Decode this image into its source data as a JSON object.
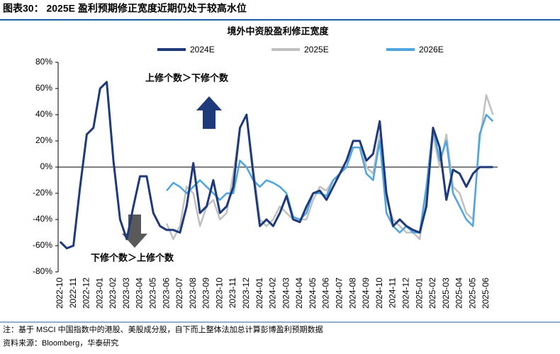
{
  "header": "图表30： 2025E 盈利预期修正宽度近期仍处于较高水位",
  "notes": [
    "注：基于 MSCI 中国指数中的港股、美股成分股，自下而上整体法加总计算彭博盈利预期数据",
    "资料来源：Bloomberg，华泰研究"
  ],
  "chart_data": {
    "type": "line",
    "title": "境外中资股盈利修正宽度",
    "annotations": [
      "上修个数＞下修个数",
      "下修个数＞上修个数"
    ],
    "categories": [
      "2022-10",
      null,
      "2022-11",
      null,
      "2022-12",
      null,
      "2023-01",
      null,
      "2023-02",
      null,
      "2023-03",
      null,
      "2023-04",
      null,
      "2023-05",
      null,
      "2023-06",
      null,
      "2023-07",
      null,
      "2023-08",
      null,
      "2023-09",
      null,
      "2023-10",
      null,
      "2023-11",
      null,
      "2023-12",
      null,
      "2024-01",
      null,
      "2024-02",
      null,
      "2024-03",
      null,
      "2024-04",
      null,
      "2024-05",
      null,
      "2024-06",
      null,
      "2024-07",
      null,
      "2024-08",
      null,
      "2024-09",
      null,
      "2024-10",
      null,
      "2024-11",
      null,
      "2024-12",
      null,
      "2025-01",
      null,
      "2025-02",
      null,
      "2025-03",
      null,
      "2025-04",
      null,
      "2025-05",
      null,
      "2025-06",
      null
    ],
    "series": [
      {
        "name": "2024E",
        "color": "#1f3a7a",
        "values": [
          -57,
          -62,
          -60,
          -15,
          25,
          30,
          60,
          65,
          5,
          -40,
          -55,
          -30,
          -7,
          -7,
          -35,
          -45,
          -48,
          -48,
          -50,
          -30,
          3,
          -35,
          -30,
          -10,
          -35,
          -30,
          -15,
          30,
          40,
          -5,
          -45,
          -40,
          -45,
          -35,
          -22,
          -40,
          -42,
          -30,
          -20,
          -18,
          -25,
          -15,
          -5,
          5,
          20,
          20,
          5,
          10,
          35,
          -20,
          -45,
          -40,
          -45,
          -48,
          -50,
          -30,
          30,
          15,
          -25,
          -2,
          -5,
          -15,
          -5,
          0,
          0,
          0
        ]
      },
      {
        "name": "2025E",
        "color": "#c0c0c0",
        "values": [
          null,
          null,
          null,
          null,
          null,
          null,
          null,
          null,
          null,
          null,
          null,
          null,
          null,
          null,
          null,
          null,
          -43,
          -55,
          -45,
          -15,
          -20,
          -45,
          -30,
          -25,
          -40,
          -35,
          -5,
          30,
          40,
          0,
          -40,
          -45,
          -40,
          -30,
          -35,
          -40,
          -40,
          -40,
          -25,
          -15,
          -18,
          -10,
          -5,
          5,
          20,
          20,
          0,
          -5,
          25,
          -25,
          -40,
          -45,
          -50,
          -50,
          -55,
          -20,
          25,
          0,
          25,
          -15,
          -20,
          -35,
          -40,
          20,
          55,
          40
        ]
      },
      {
        "name": "2026E",
        "color": "#4ea5e0",
        "values": [
          null,
          null,
          null,
          null,
          null,
          null,
          null,
          null,
          null,
          null,
          null,
          null,
          null,
          null,
          null,
          null,
          -18,
          -12,
          -15,
          -20,
          -15,
          -10,
          -15,
          -20,
          -25,
          -20,
          -20,
          5,
          0,
          -10,
          -15,
          -10,
          -12,
          -15,
          -20,
          -38,
          -40,
          -35,
          -20,
          -20,
          -22,
          -10,
          -5,
          0,
          15,
          15,
          -5,
          -10,
          20,
          -35,
          -45,
          -50,
          -45,
          -50,
          -50,
          -15,
          30,
          5,
          20,
          -20,
          -30,
          -40,
          -45,
          25,
          40,
          35
        ]
      }
    ],
    "ylim": [
      -80,
      80
    ],
    "yticks": [
      {
        "value": -80,
        "label": "-80%"
      },
      {
        "value": -60,
        "label": "-60%"
      },
      {
        "value": -40,
        "label": "-40%"
      },
      {
        "value": -20,
        "label": "-20%"
      },
      {
        "value": 0,
        "label": "0%"
      },
      {
        "value": 20,
        "label": "20%"
      },
      {
        "value": 40,
        "label": "40%"
      },
      {
        "value": 60,
        "label": "60%"
      },
      {
        "value": 80,
        "label": "80%"
      }
    ],
    "legend": "top"
  }
}
